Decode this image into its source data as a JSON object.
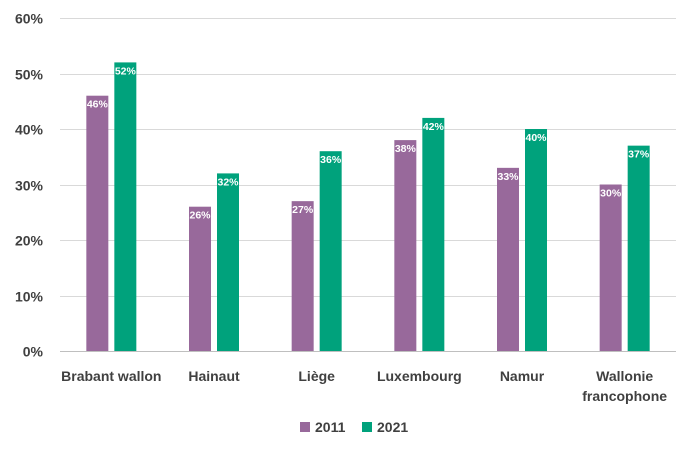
{
  "chart_data": {
    "type": "bar",
    "title": "",
    "xlabel": "",
    "ylabel": "",
    "categories": [
      [
        "Brabant wallon"
      ],
      [
        "Hainaut"
      ],
      [
        "Liège"
      ],
      [
        "Luxembourg"
      ],
      [
        "Namur"
      ],
      [
        "Wallonie",
        "francophone"
      ]
    ],
    "series": [
      {
        "name": "2011",
        "color": "#98699b",
        "values": [
          46,
          26,
          27,
          38,
          33,
          30
        ],
        "labels": [
          "46%",
          "26%",
          "27%",
          "38%",
          "33%",
          "30%"
        ]
      },
      {
        "name": "2021",
        "color": "#00a27c",
        "values": [
          52,
          32,
          36,
          42,
          40,
          37
        ],
        "labels": [
          "52%",
          "32%",
          "36%",
          "42%",
          "40%",
          "37%"
        ]
      }
    ],
    "ylim": [
      0,
      60
    ],
    "yticks": [
      0,
      10,
      20,
      30,
      40,
      50,
      60
    ],
    "ytick_labels": [
      "0%",
      "10%",
      "20%",
      "30%",
      "40%",
      "50%",
      "60%"
    ],
    "grid": true,
    "legend_position": "bottom"
  }
}
